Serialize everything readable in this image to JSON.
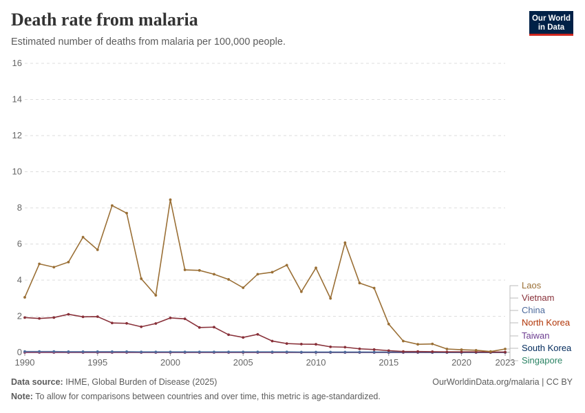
{
  "header": {
    "title": "Death rate from malaria",
    "subtitle": "Estimated number of deaths from malaria per 100,000 people."
  },
  "logo": {
    "line1": "Our World",
    "line2": "in Data",
    "bg_color": "#002147",
    "accent_color": "#ce261e"
  },
  "footer": {
    "source_label": "Data source:",
    "source_text": "IHME, Global Burden of Disease (2025)",
    "url_text": "OurWorldinData.org/malaria | CC BY",
    "note_label": "Note:",
    "note_text": "To allow for comparisons between countries and over time, this metric is age-standardized."
  },
  "chart_data": {
    "type": "line",
    "x_ticks": [
      1990,
      1995,
      2000,
      2005,
      2010,
      2015,
      2020,
      2023
    ],
    "y_ticks": [
      0,
      2,
      4,
      6,
      8,
      10,
      12,
      14,
      16
    ],
    "xlim": [
      1990,
      2023
    ],
    "ylim": [
      0,
      16
    ],
    "grid": "horizontal-dashed",
    "legend": "right-end-labels",
    "x": [
      1990,
      1991,
      1992,
      1993,
      1994,
      1995,
      1996,
      1997,
      1998,
      1999,
      2000,
      2001,
      2002,
      2003,
      2004,
      2005,
      2006,
      2007,
      2008,
      2009,
      2010,
      2011,
      2012,
      2013,
      2014,
      2015,
      2016,
      2017,
      2018,
      2019,
      2020,
      2021,
      2022,
      2023
    ],
    "series": [
      {
        "name": "Laos",
        "color": "#9a6f35",
        "values": [
          3.05,
          4.9,
          4.72,
          5.0,
          6.38,
          5.68,
          8.13,
          7.71,
          4.08,
          3.16,
          8.45,
          4.57,
          4.54,
          4.33,
          4.04,
          3.58,
          4.33,
          4.44,
          4.83,
          3.36,
          4.68,
          2.99,
          6.07,
          3.84,
          3.56,
          1.57,
          0.63,
          0.45,
          0.47,
          0.19,
          0.15,
          0.12,
          0.05,
          0.19
        ]
      },
      {
        "name": "Vietnam",
        "color": "#883039",
        "values": [
          1.93,
          1.88,
          1.93,
          2.11,
          1.97,
          1.98,
          1.63,
          1.61,
          1.42,
          1.6,
          1.91,
          1.86,
          1.38,
          1.4,
          0.98,
          0.83,
          1.0,
          0.63,
          0.49,
          0.46,
          0.45,
          0.31,
          0.29,
          0.2,
          0.16,
          0.1,
          0.05,
          0.05,
          0.04,
          0.03,
          0.03,
          0.03,
          0.02,
          0.02
        ]
      },
      {
        "name": "China",
        "color": "#4c6a9c",
        "values": [
          0.05,
          0.05,
          0.05,
          0.04,
          0.04,
          0.04,
          0.04,
          0.04,
          0.03,
          0.03,
          0.03,
          0.03,
          0.03,
          0.03,
          0.03,
          0.03,
          0.03,
          0.03,
          0.03,
          0.02,
          0.02,
          0.02,
          0.02,
          0.02,
          0.02,
          0.02,
          0.02,
          0.02,
          0.01,
          0.01,
          0.01,
          0.01,
          0.01,
          0.01
        ]
      },
      {
        "name": "North Korea",
        "color": "#c15065",
        "values": [
          0.01,
          0.01,
          0.01,
          0.01,
          0.01,
          0.01,
          0.01,
          0.01,
          0.01,
          0.01,
          0.01,
          0.01,
          0.01,
          0.01,
          0.01,
          0.01,
          0.01,
          0.01,
          0.01,
          0.01,
          0.01,
          0.01,
          0.01,
          0.01,
          0.01,
          0.01,
          0.01,
          0.01,
          0.01,
          0.01,
          0.01,
          0.01,
          0.01,
          0.01
        ]
      },
      {
        "name": "Taiwan",
        "color": "#6d3e91",
        "values": [
          0,
          0,
          0,
          0,
          0,
          0,
          0,
          0,
          0,
          0,
          0,
          0,
          0,
          0,
          0,
          0,
          0,
          0,
          0,
          0,
          0,
          0,
          0,
          0,
          0,
          0,
          0,
          0,
          0,
          0,
          0,
          0,
          0,
          0
        ]
      },
      {
        "name": "South Korea",
        "color": "#00295b",
        "values": [
          0,
          0,
          0,
          0,
          0,
          0,
          0,
          0,
          0,
          0,
          0,
          0,
          0,
          0,
          0,
          0,
          0,
          0,
          0,
          0,
          0,
          0,
          0,
          0,
          0,
          0,
          0,
          0,
          0,
          0,
          0,
          0,
          0,
          0
        ]
      },
      {
        "name": "Singapore",
        "color": "#2c8465",
        "values": [
          0,
          0,
          0,
          0,
          0,
          0,
          0,
          0,
          0,
          0,
          0,
          0,
          0,
          0,
          0,
          0,
          0,
          0,
          0,
          0,
          0,
          0,
          0,
          0,
          0,
          0,
          0,
          0,
          0,
          0,
          0,
          0,
          0,
          0
        ]
      }
    ],
    "label_colors": {
      "Laos": "#9a6f35",
      "Vietnam": "#883039",
      "China": "#4c6a9c",
      "North Korea": "#b13507",
      "Taiwan": "#6d3e91",
      "South Korea": "#00295b",
      "Singapore": "#2c8465"
    }
  }
}
